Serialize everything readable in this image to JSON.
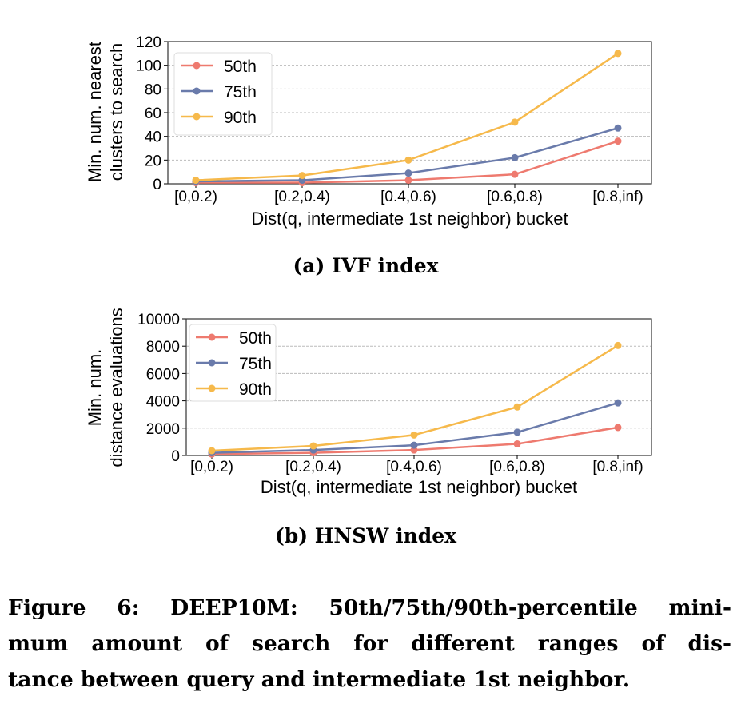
{
  "chart_data": [
    {
      "type": "line",
      "title": "(a) IVF index",
      "xlabel": "Dist(q, intermediate 1st neighbor) bucket",
      "ylabel": [
        "Min. num. nearest",
        "clusters to search"
      ],
      "categories": [
        "[0,0.2)",
        "[0.2,0.4)",
        "[0.4,0.6)",
        "[0.6,0.8)",
        "[0.8,inf)"
      ],
      "ylim": [
        0,
        120
      ],
      "yticks": [
        0,
        20,
        40,
        60,
        80,
        100,
        120
      ],
      "grid": true,
      "legend": "top-left",
      "series": [
        {
          "name": "50th",
          "color": "#ee7a6f",
          "values": [
            1,
            1,
            3,
            8,
            36
          ]
        },
        {
          "name": "75th",
          "color": "#6a7bab",
          "values": [
            2,
            3,
            9,
            22,
            47
          ]
        },
        {
          "name": "90th",
          "color": "#f6b94b",
          "values": [
            3,
            7,
            20,
            52,
            110
          ]
        }
      ]
    },
    {
      "type": "line",
      "title": "(b) HNSW index",
      "xlabel": "Dist(q, intermediate 1st neighbor) bucket",
      "ylabel": [
        "Min. num.",
        "distance evaluations"
      ],
      "categories": [
        "[0,0.2)",
        "[0.2,0.4)",
        "[0.4,0.6)",
        "[0.6,0.8)",
        "[0.8,inf)"
      ],
      "ylim": [
        0,
        10000
      ],
      "yticks": [
        0,
        2000,
        4000,
        6000,
        8000,
        10000
      ],
      "grid": true,
      "legend": "top-left",
      "series": [
        {
          "name": "50th",
          "color": "#ee7a6f",
          "values": [
            100,
            200,
            400,
            850,
            2050
          ]
        },
        {
          "name": "75th",
          "color": "#6a7bab",
          "values": [
            200,
            400,
            750,
            1700,
            3850
          ]
        },
        {
          "name": "90th",
          "color": "#f6b94b",
          "values": [
            350,
            700,
            1500,
            3550,
            8050
          ]
        }
      ]
    }
  ],
  "caption": [
    "Figure 6: DEEP10M: 50th/75th/90th-percentile mini-",
    "mum amount of search for different ranges of dis-",
    "tance between query and intermediate 1st neighbor."
  ]
}
